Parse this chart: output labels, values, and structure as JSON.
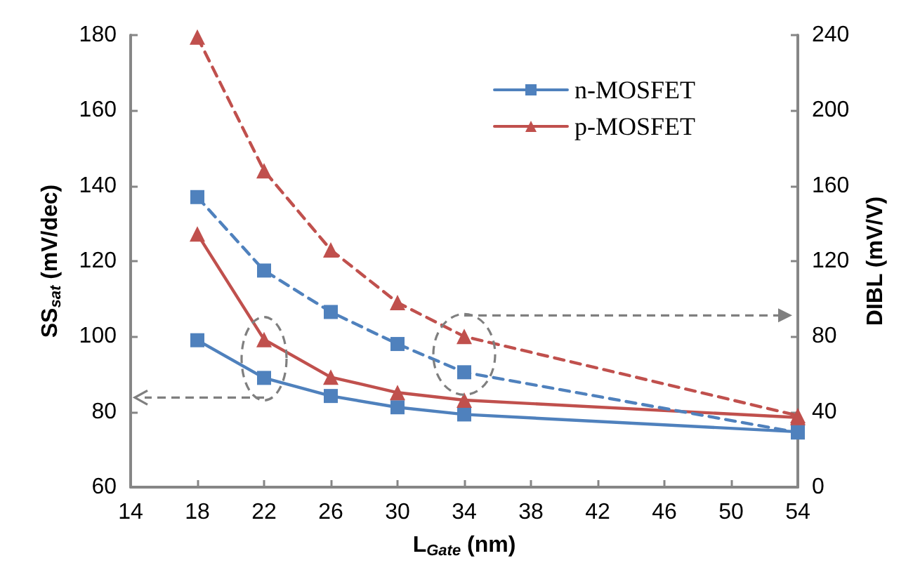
{
  "chart_data": {
    "type": "line",
    "xlabel": "L$_{Gate}$ (nm)",
    "ylabel": "SS$_{sat}$ (mV/dec)",
    "y2label": "DIBL (mV/V)",
    "x": [
      18,
      22,
      26,
      30,
      34,
      54
    ],
    "series": [
      {
        "name": "n-MOSFET",
        "color": "#4f81bd",
        "marker": "square",
        "line_style": "solid",
        "values": [
          99,
          89,
          84.2,
          81.2,
          79.3,
          74.7
        ]
      },
      {
        "name": "p-MOSFET",
        "color": "#c0504d",
        "marker": "triangle",
        "line_style": "solid",
        "values": [
          127.2,
          99.2,
          89.2,
          85.1,
          83.1,
          78.5
        ]
      },
      {
        "color": "#4f81bd",
        "marker": "square",
        "line_style": "dashed",
        "axis": "y2",
        "values": [
          154,
          115,
          93,
          76,
          61,
          29
        ]
      },
      {
        "color": "#c0504d",
        "marker": "triangle",
        "line_style": "dashed",
        "axis": "y2",
        "values": [
          239,
          168,
          126,
          98,
          80,
          38
        ]
      }
    ],
    "xlim": [
      14,
      54
    ],
    "xticks": [
      14,
      18,
      22,
      26,
      30,
      34,
      38,
      42,
      46,
      50,
      54
    ],
    "ylim": [
      60,
      180
    ],
    "yticks": [
      60,
      80,
      100,
      120,
      140,
      160,
      180
    ],
    "y2lim": [
      0,
      240
    ],
    "y2ticks": [
      0,
      40,
      80,
      120,
      160,
      200,
      240
    ],
    "grid": false,
    "legend": "top right"
  }
}
